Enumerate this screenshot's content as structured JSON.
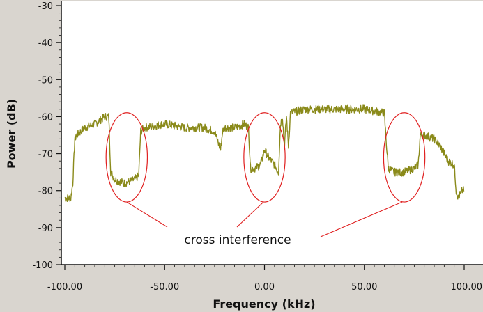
{
  "chart_data": {
    "type": "line",
    "title": "",
    "xlabel": "Frequency (kHz)",
    "ylabel": "Power (dB)",
    "xlim": [
      -100,
      100
    ],
    "ylim": [
      -100,
      -30
    ],
    "xticks": [
      -100,
      -50,
      0,
      50,
      100
    ],
    "xtick_labels": [
      "-100.00",
      "-50.00",
      "0.00",
      "50.00",
      "100.00"
    ],
    "yticks": [
      -30,
      -40,
      -50,
      -60,
      -70,
      -80,
      -90,
      -100
    ],
    "ytick_labels": [
      "-30",
      "-40",
      "-50",
      "-60",
      "-70",
      "-80",
      "-90",
      "-100"
    ],
    "grid": false,
    "legend": "none",
    "colors": {
      "plot_background": "#ffffff",
      "figure_background": "#d9d5cf",
      "series": "#8a8a1a",
      "annotation": "#e02020"
    },
    "series": [
      {
        "x": [
          -100,
          -97,
          -96,
          -95,
          -94,
          -90,
          -85,
          -80,
          -78,
          -77,
          -75,
          -70,
          -65,
          -63,
          -62,
          -60,
          -50,
          -40,
          -30,
          -25,
          -22,
          -21,
          -20,
          -15,
          -10,
          -8,
          -7,
          -5,
          -2,
          0,
          2,
          5,
          7,
          8,
          9,
          10,
          11,
          12,
          13,
          20,
          30,
          40,
          50,
          60,
          61,
          62,
          65,
          70,
          75,
          77,
          78,
          80,
          85,
          88,
          90,
          92,
          95,
          96,
          97,
          99,
          100
        ],
        "y": [
          -82,
          -82,
          -78,
          -66,
          -65,
          -63,
          -62,
          -60,
          -60,
          -75,
          -77,
          -78,
          -77,
          -76,
          -64,
          -63,
          -62,
          -63,
          -63,
          -64,
          -69,
          -64,
          -63,
          -63,
          -62,
          -63,
          -74,
          -74,
          -73,
          -69,
          -71,
          -73,
          -75,
          -62,
          -60,
          -68,
          -60,
          -68,
          -59,
          -58,
          -58,
          -58,
          -58,
          -59,
          -67,
          -74,
          -75,
          -75,
          -74,
          -73,
          -65,
          -65,
          -66,
          -68,
          -70,
          -72,
          -73,
          -80,
          -82,
          -80,
          -80
        ]
      }
    ],
    "annotations": [
      {
        "text": "cross interference",
        "targets": [
          [
            -69,
            -71
          ],
          [
            0,
            -71
          ],
          [
            70,
            -71
          ]
        ],
        "ellipse_rx_kHz": 11.5,
        "ellipse_ry_dB": 11.5
      }
    ]
  }
}
